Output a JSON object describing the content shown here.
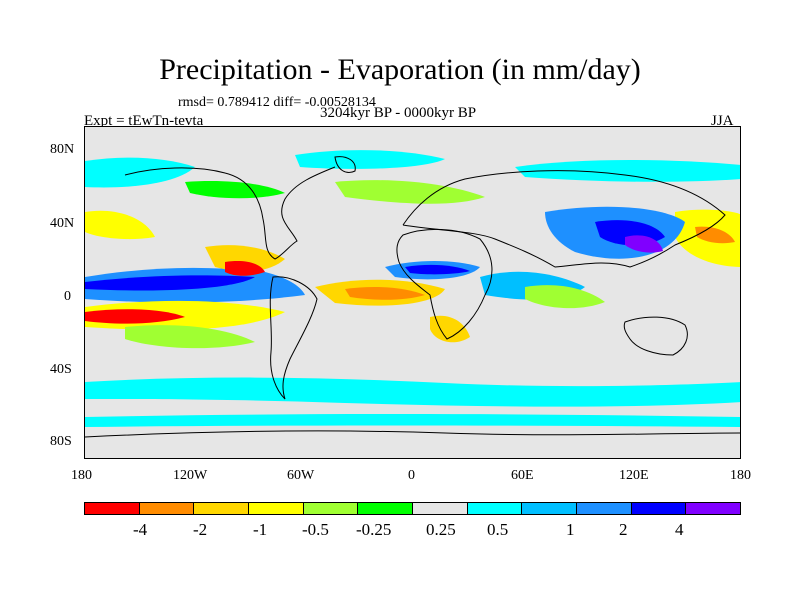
{
  "title": "Precipitation - Evaporation (in mm/day)",
  "stats": "rmsd= 0.789412 diff= -0.00528134",
  "experiment": "Expt = tEwTn-tevta",
  "period": "3204kyr BP - 0000kyr BP",
  "season": "JJA",
  "lat_ticks": [
    "80N",
    "40N",
    "0",
    "40S",
    "80S"
  ],
  "lon_ticks": [
    "180",
    "120W",
    "60W",
    "0",
    "60E",
    "120E",
    "180"
  ],
  "colorbar": {
    "colors": [
      "#ff0000",
      "#ff8c00",
      "#ffd700",
      "#ffff00",
      "#a0ff32",
      "#00ff00",
      "#e6e6e6",
      "#00ffff",
      "#00bfff",
      "#1e90ff",
      "#0000ff",
      "#8000ff"
    ],
    "labels": [
      "-4",
      "-2",
      "-1",
      "-0.5",
      "-0.25",
      "0.25",
      "0.5",
      "1",
      "2",
      "4"
    ]
  },
  "legend_colors": {
    "neutral": "#e6e6e6",
    "strong_negative": "#ff0000",
    "moderate_negative": "#ffd700",
    "weak_negative": "#a0ff32",
    "weak_positive": "#00ffff",
    "moderate_positive": "#1e90ff",
    "strong_positive": "#0000ff"
  }
}
